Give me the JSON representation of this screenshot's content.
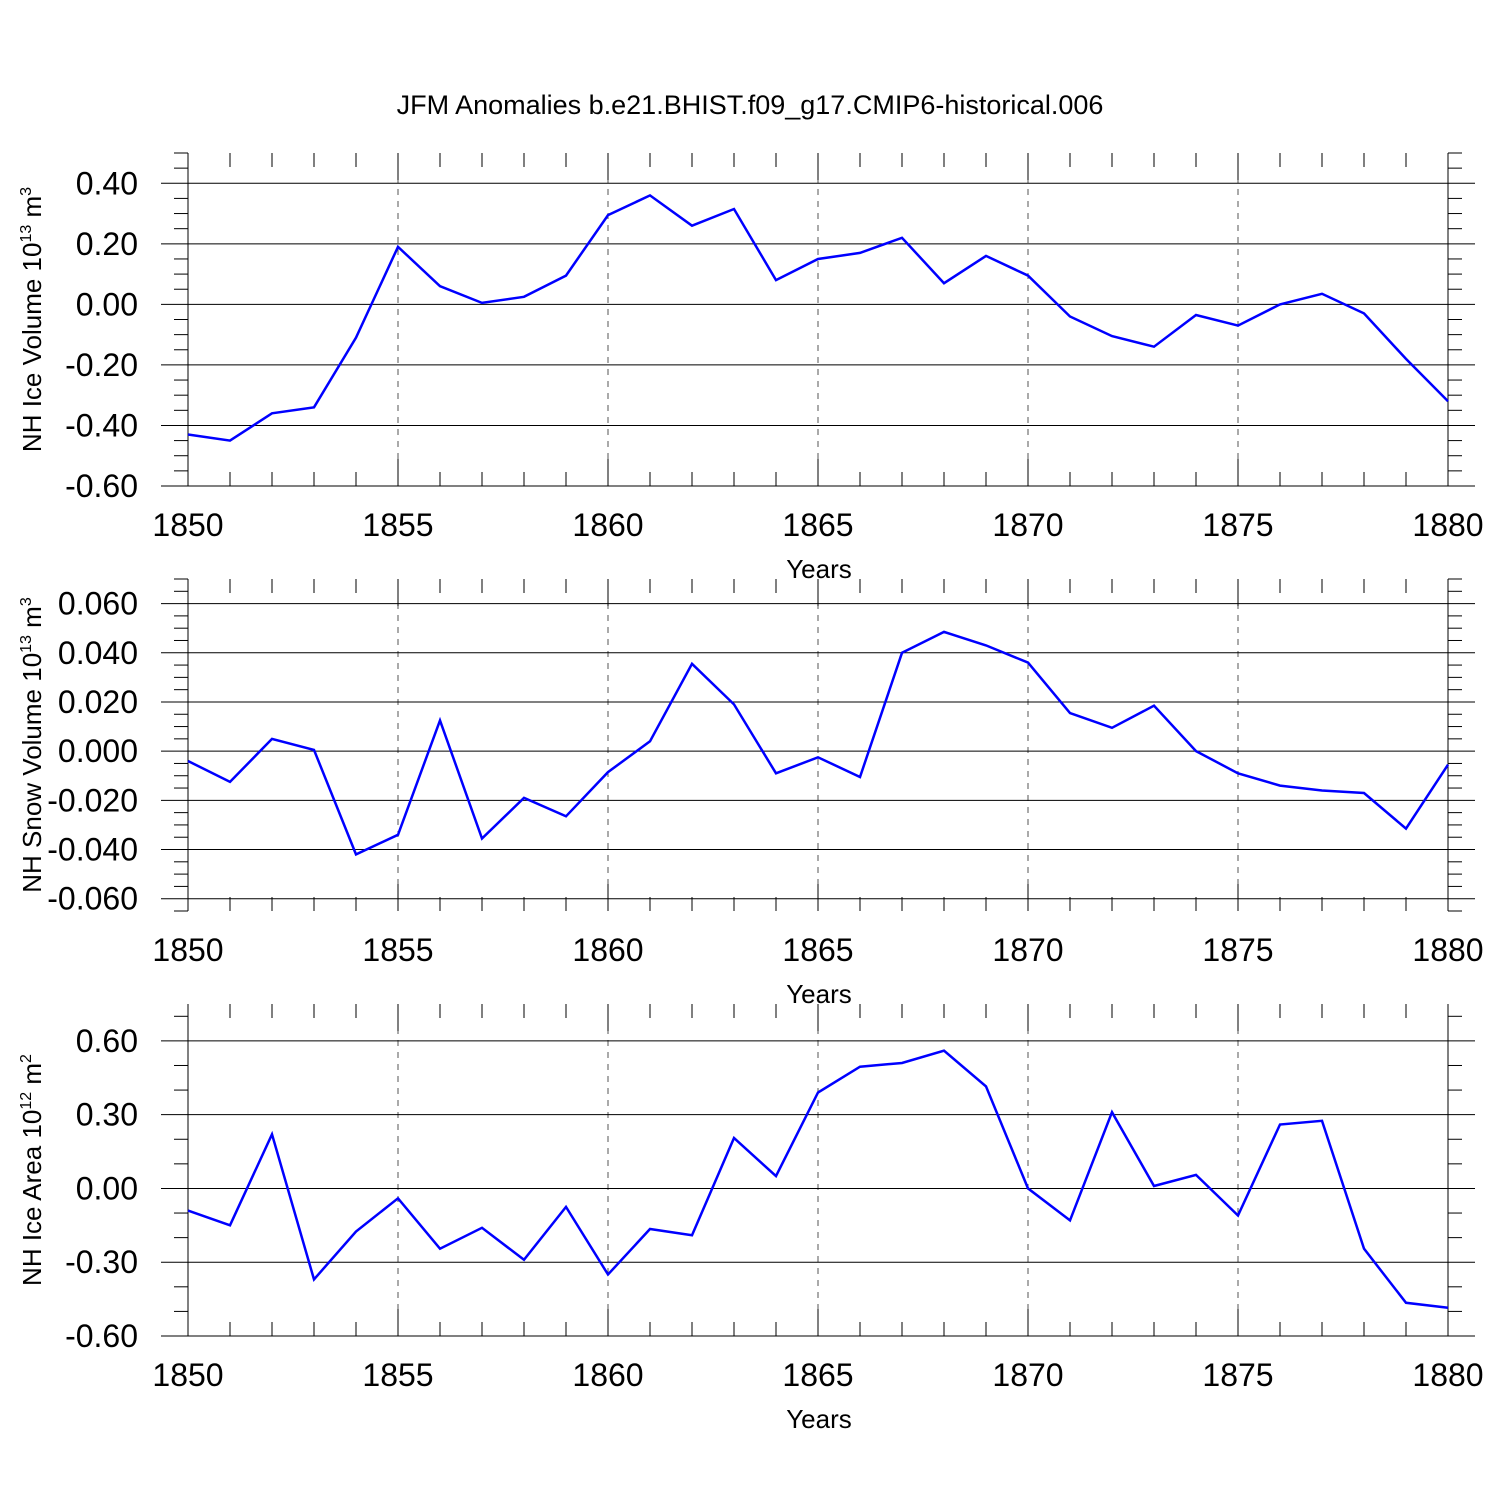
{
  "title": "JFM Anomalies b.e21.BHIST.f09_g17.CMIP6-historical.006",
  "line_color": "#0000ff",
  "chart_data": [
    {
      "type": "line",
      "ylabel_main": "NH Ice Volume 10",
      "ylabel_exp": "13",
      "ylabel_unit": " m",
      "ylabel_unit_exp": "3",
      "xlabel": "Years",
      "xlim": [
        1850,
        1880
      ],
      "ylim": [
        -0.6,
        0.5
      ],
      "yticks": [
        0.4,
        0.2,
        0.0,
        -0.2,
        -0.4,
        -0.6
      ],
      "ytick_labels": [
        "0.40",
        "0.20",
        "0.00",
        "-0.20",
        "-0.40",
        "-0.60"
      ],
      "yminor_step": 0.05,
      "xticks": [
        1850,
        1855,
        1860,
        1865,
        1870,
        1875,
        1880
      ],
      "xtick_labels": [
        "1850",
        "1855",
        "1860",
        "1865",
        "1870",
        "1875",
        "1880"
      ],
      "x": [
        1850,
        1851,
        1852,
        1853,
        1854,
        1855,
        1856,
        1857,
        1858,
        1859,
        1860,
        1861,
        1862,
        1863,
        1864,
        1865,
        1866,
        1867,
        1868,
        1869,
        1870,
        1871,
        1872,
        1873,
        1874,
        1875,
        1876,
        1877,
        1878,
        1879,
        1880
      ],
      "values": [
        -0.43,
        -0.45,
        -0.36,
        -0.34,
        -0.11,
        0.19,
        0.06,
        0.005,
        0.025,
        0.095,
        0.295,
        0.36,
        0.26,
        0.315,
        0.08,
        0.15,
        0.17,
        0.22,
        0.07,
        0.16,
        0.095,
        -0.04,
        -0.105,
        -0.14,
        -0.035,
        -0.07,
        0.0,
        0.035,
        -0.03,
        -0.18,
        -0.32
      ]
    },
    {
      "type": "line",
      "ylabel_main": "NH Snow Volume 10",
      "ylabel_exp": "13",
      "ylabel_unit": " m",
      "ylabel_unit_exp": "3",
      "xlabel": "Years",
      "xlim": [
        1850,
        1880
      ],
      "ylim": [
        -0.065,
        0.07
      ],
      "yticks": [
        0.06,
        0.04,
        0.02,
        0.0,
        -0.02,
        -0.04,
        -0.06
      ],
      "ytick_labels": [
        "0.060",
        "0.040",
        "0.020",
        "0.000",
        "-0.020",
        "-0.040",
        "-0.060"
      ],
      "yminor_step": 0.005,
      "xticks": [
        1850,
        1855,
        1860,
        1865,
        1870,
        1875,
        1880
      ],
      "xtick_labels": [
        "1850",
        "1855",
        "1860",
        "1865",
        "1870",
        "1875",
        "1880"
      ],
      "x": [
        1850,
        1851,
        1852,
        1853,
        1854,
        1855,
        1856,
        1857,
        1858,
        1859,
        1860,
        1861,
        1862,
        1863,
        1864,
        1865,
        1866,
        1867,
        1868,
        1869,
        1870,
        1871,
        1872,
        1873,
        1874,
        1875,
        1876,
        1877,
        1878,
        1879,
        1880
      ],
      "values": [
        -0.004,
        -0.0125,
        0.005,
        0.0005,
        -0.042,
        -0.034,
        0.0125,
        -0.0355,
        -0.019,
        -0.0265,
        -0.0085,
        0.004,
        0.0355,
        0.019,
        -0.009,
        -0.0025,
        -0.0105,
        0.04,
        0.0485,
        0.043,
        0.036,
        0.0155,
        0.0095,
        0.0185,
        0.0,
        -0.009,
        -0.014,
        -0.016,
        -0.017,
        -0.0315,
        -0.0055
      ]
    },
    {
      "type": "line",
      "ylabel_main": "NH Ice Area 10",
      "ylabel_exp": "12",
      "ylabel_unit": " m",
      "ylabel_unit_exp": "2",
      "xlabel": "Years",
      "xlim": [
        1850,
        1880
      ],
      "ylim": [
        -0.6,
        0.75
      ],
      "yticks": [
        0.6,
        0.3,
        0.0,
        -0.3,
        -0.6
      ],
      "ytick_labels": [
        "0.60",
        "0.30",
        "0.00",
        "-0.30",
        "-0.60"
      ],
      "yminor_step": 0.1,
      "xticks": [
        1850,
        1855,
        1860,
        1865,
        1870,
        1875,
        1880
      ],
      "xtick_labels": [
        "1850",
        "1855",
        "1860",
        "1865",
        "1870",
        "1875",
        "1880"
      ],
      "x": [
        1850,
        1851,
        1852,
        1853,
        1854,
        1855,
        1856,
        1857,
        1858,
        1859,
        1860,
        1861,
        1862,
        1863,
        1864,
        1865,
        1866,
        1867,
        1868,
        1869,
        1870,
        1871,
        1872,
        1873,
        1874,
        1875,
        1876,
        1877,
        1878,
        1879,
        1880
      ],
      "values": [
        -0.09,
        -0.15,
        0.22,
        -0.37,
        -0.175,
        -0.04,
        -0.245,
        -0.16,
        -0.29,
        -0.075,
        -0.35,
        -0.165,
        -0.19,
        0.205,
        0.05,
        0.39,
        0.495,
        0.51,
        0.56,
        0.415,
        0.0,
        -0.13,
        0.31,
        0.01,
        0.055,
        -0.11,
        0.26,
        0.275,
        -0.245,
        -0.465,
        -0.485
      ]
    }
  ]
}
